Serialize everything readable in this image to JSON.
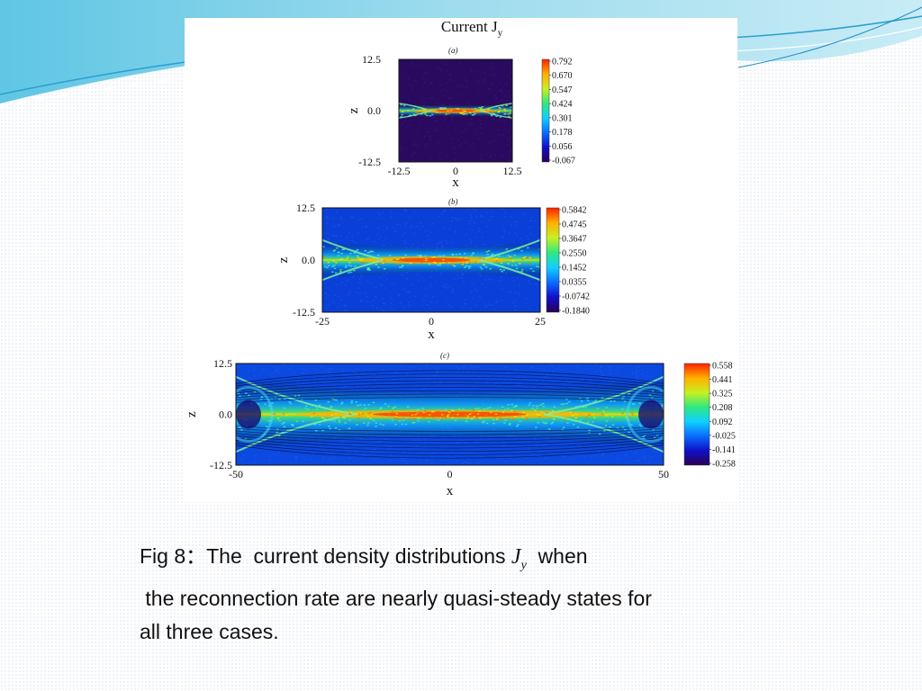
{
  "figure": {
    "title": "Current J",
    "title_sub": "y",
    "colors": {
      "frame": "#111111",
      "contour": "#0a0a30"
    }
  },
  "chart_data": [
    {
      "type": "heatmap",
      "panel_label": "(a)",
      "xlabel": "x",
      "ylabel": "z",
      "xlim": [
        -12.5,
        12.5
      ],
      "ylim": [
        -12.5,
        12.5
      ],
      "xticks": [
        "-12.5",
        "0",
        "12.5"
      ],
      "yticks": [
        "12.5",
        "0.0",
        "-12.5"
      ],
      "colorbar_ticks": [
        "0.792",
        "0.670",
        "0.547",
        "0.424",
        "0.301",
        "0.178",
        "0.056",
        "-0.067"
      ],
      "colorbar_range": [
        -0.067,
        0.792
      ],
      "background": "#2a0a5e",
      "sheet": "thin current sheet along z=0, bifurcated arms near both ends",
      "contours": false
    },
    {
      "type": "heatmap",
      "panel_label": "(b)",
      "xlabel": "x",
      "ylabel": "z",
      "xlim": [
        -25,
        25
      ],
      "ylim": [
        -12.5,
        12.5
      ],
      "xticks": [
        "-25",
        "0",
        "25"
      ],
      "yticks": [
        "12.5",
        "0.0",
        "-12.5"
      ],
      "colorbar_ticks": [
        "0.5842",
        "0.4745",
        "0.3647",
        "0.2550",
        "0.1452",
        "0.0355",
        "-0.0742",
        "-0.1840"
      ],
      "colorbar_range": [
        -0.184,
        0.5842
      ],
      "background": "#0a3fd8",
      "sheet": "current sheet along z=0, wider at both ends",
      "contours": false
    },
    {
      "type": "heatmap",
      "panel_label": "(c)",
      "xlabel": "x",
      "ylabel": "z",
      "xlim": [
        -50,
        50
      ],
      "ylim": [
        -12.5,
        12.5
      ],
      "xticks": [
        "-50",
        "0",
        "50"
      ],
      "yticks": [
        "12.5",
        "0.0",
        "-12.5"
      ],
      "colorbar_ticks": [
        "0.558",
        "0.441",
        "0.325",
        "0.208",
        "0.092",
        "-0.025",
        "-0.141",
        "-0.258"
      ],
      "colorbar_range": [
        -0.258,
        0.558
      ],
      "background": "#0b49e0",
      "sheet": "long current sheet along z=0 with magnetic field lines",
      "contours": true
    }
  ],
  "caption": {
    "line1_a": "Fig 8：The  current density distributions ",
    "symbol": "J",
    "symbol_sub": "y",
    "line1_b": "  when",
    "line2": " the reconnection rate are nearly quasi-steady states for",
    "line3": "all three cases."
  }
}
